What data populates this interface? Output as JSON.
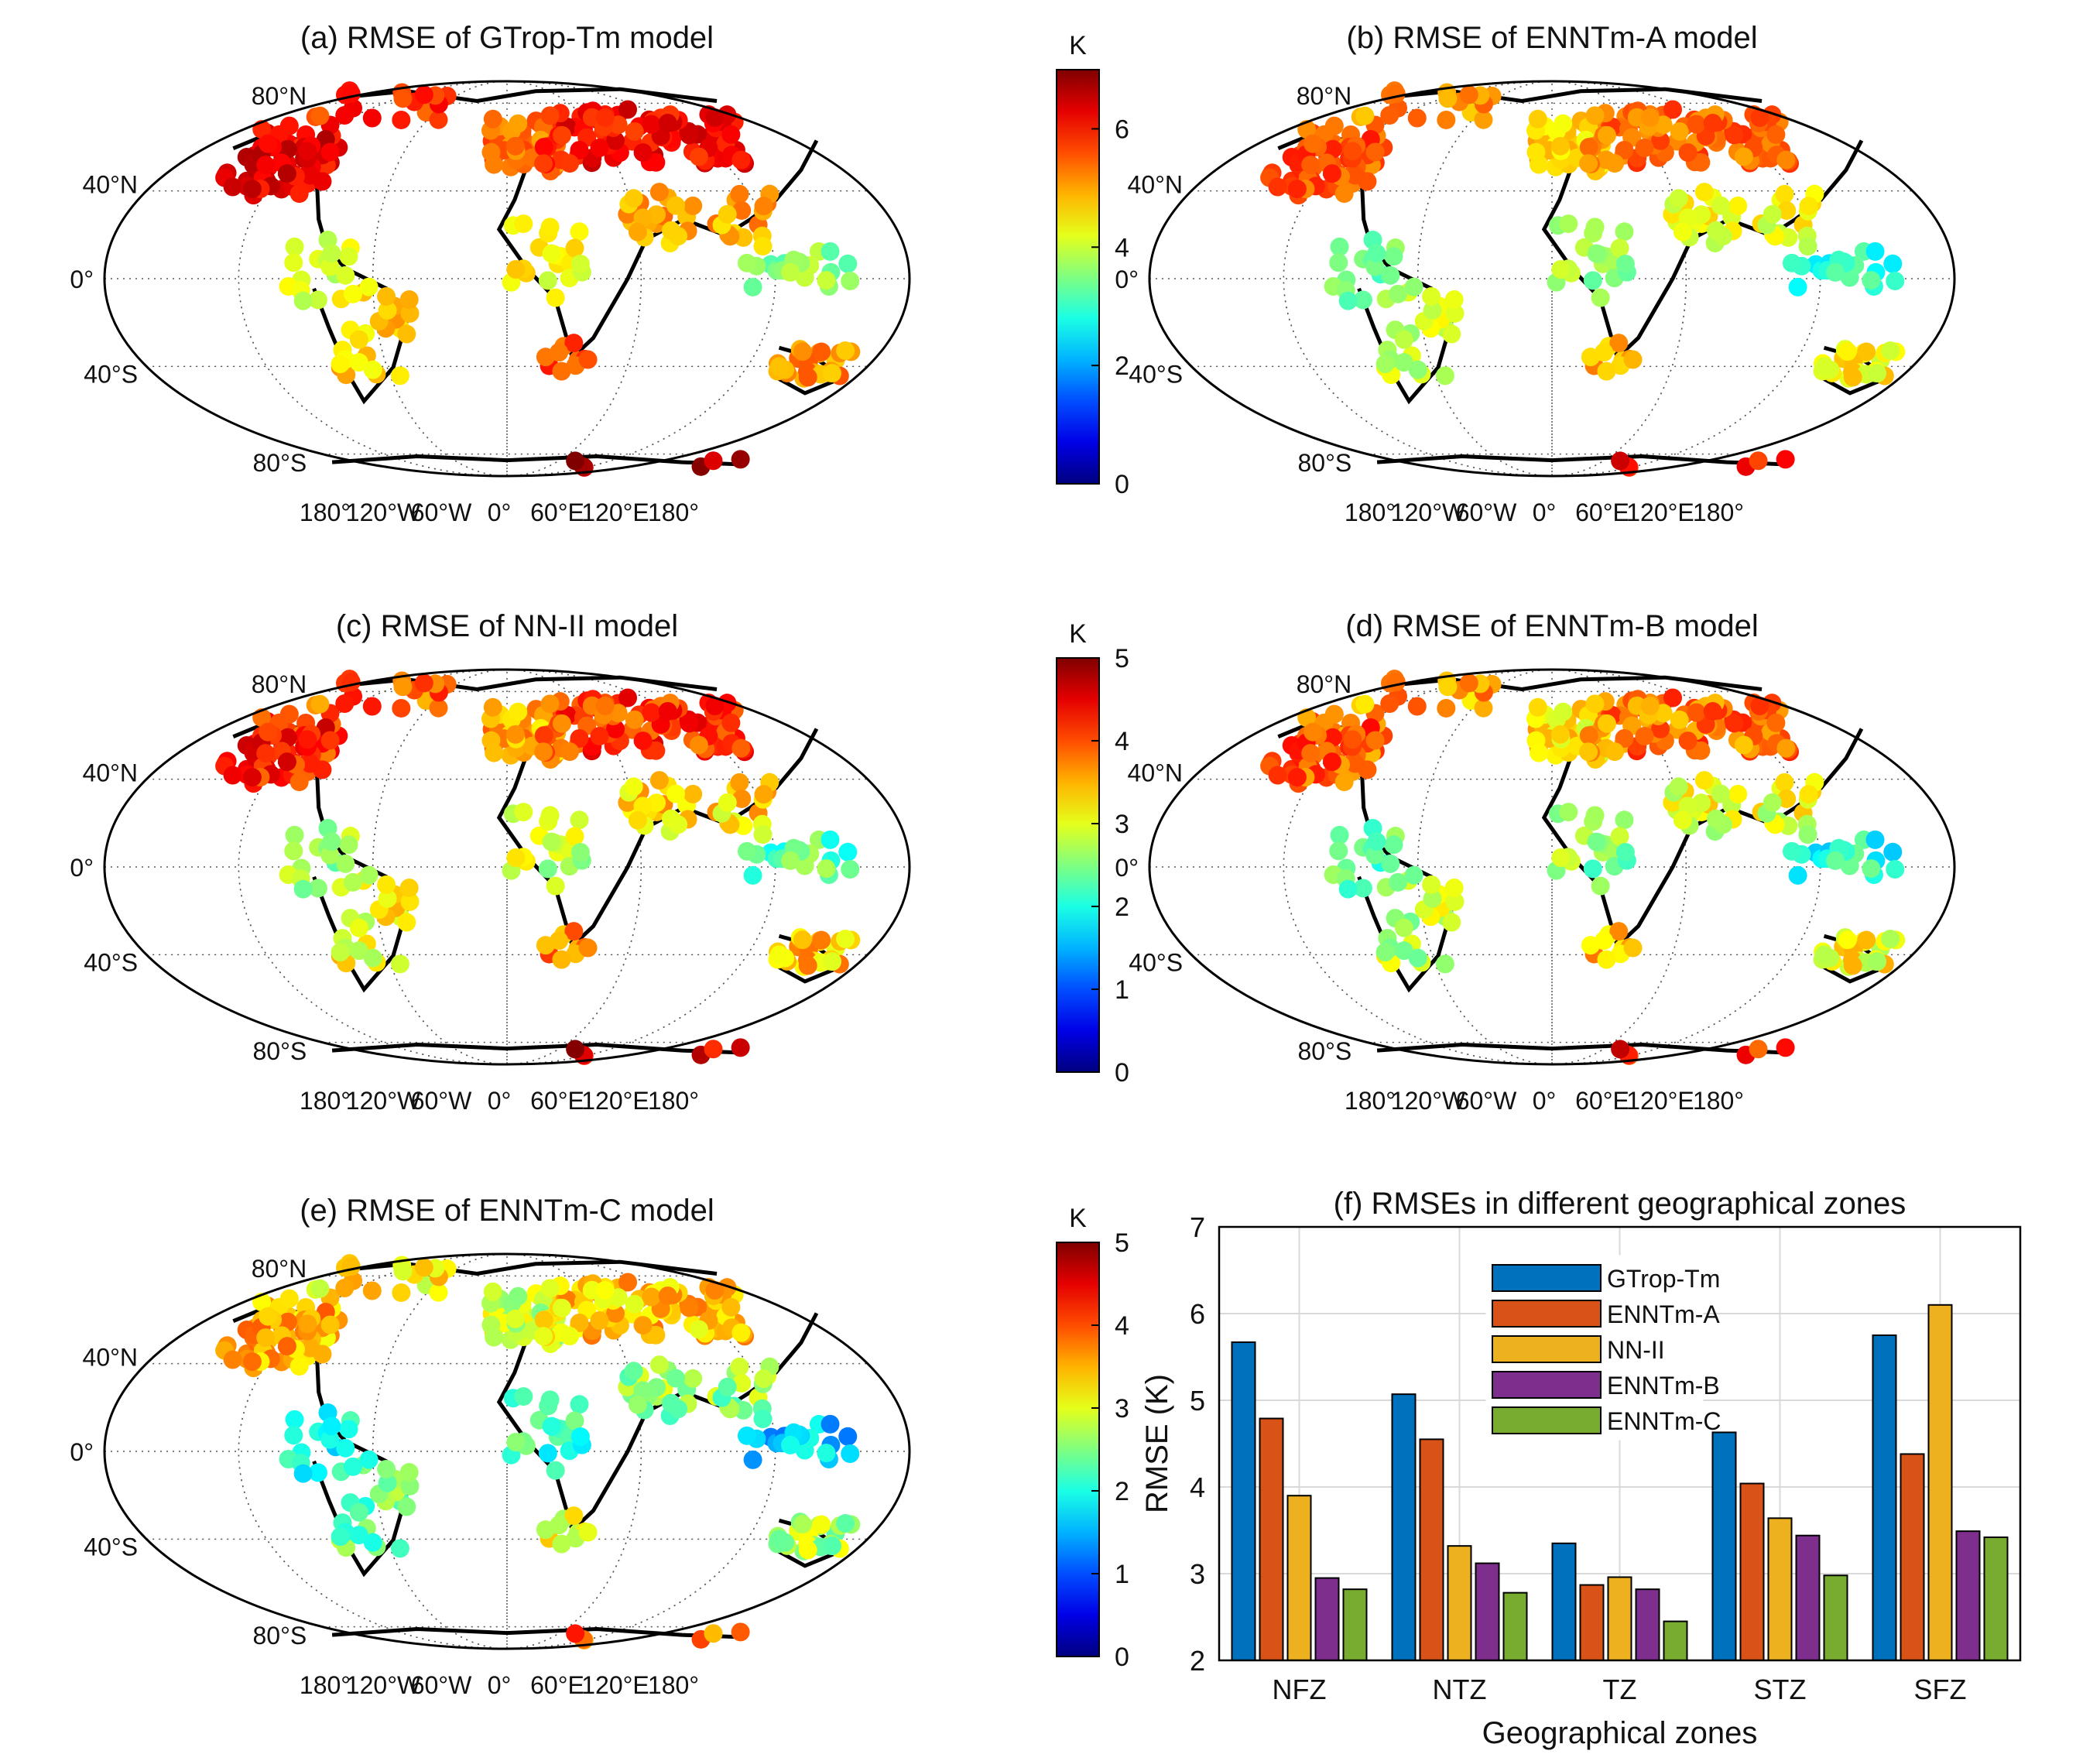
{
  "figure": {
    "unit_label": "K"
  },
  "map_axes": {
    "lat_ticks": [
      "80°N",
      "40°N",
      "0°",
      "40°S",
      "80°S"
    ],
    "lon_ticks": [
      "180°",
      "120°W",
      "60°W",
      "0°",
      "60°E",
      "120°E",
      "180°"
    ]
  },
  "panels": [
    {
      "id": "a",
      "title": "(a) RMSE of GTrop-Tm model",
      "cmax": 7,
      "cticks": [
        "0",
        "2",
        "4",
        "6"
      ],
      "level": 5.4
    },
    {
      "id": "b",
      "title": "(b) RMSE of ENNTm-A model",
      "cmax": 7,
      "cticks": [
        "0",
        "2",
        "4",
        "6"
      ],
      "level": 4.7
    },
    {
      "id": "c",
      "title": "(c) RMSE of NN-II model",
      "cmax": 5,
      "cticks": [
        "0",
        "1",
        "2",
        "3",
        "4",
        "5"
      ],
      "level": 3.6
    },
    {
      "id": "d",
      "title": "(d) RMSE of ENNTm-B model",
      "cmax": 5,
      "cticks": [
        "0",
        "1",
        "2",
        "3",
        "4",
        "5"
      ],
      "level": 3.3
    },
    {
      "id": "e",
      "title": "(e) RMSE of ENNTm-C model",
      "cmax": 5,
      "cticks": [
        "0",
        "1",
        "2",
        "3",
        "4",
        "5"
      ],
      "level": 2.9
    }
  ],
  "chart_data": {
    "type": "bar",
    "title": "(f) RMSEs in different geographical zones",
    "xlabel": "Geographical zones",
    "ylabel": "RMSE (K)",
    "ylim": [
      2,
      7
    ],
    "yticks": [
      "2",
      "3",
      "4",
      "5",
      "6",
      "7"
    ],
    "categories": [
      "NFZ",
      "NTZ",
      "TZ",
      "STZ",
      "SFZ"
    ],
    "series": [
      {
        "name": "GTrop-Tm",
        "color": "#0072BD",
        "values": [
          5.67,
          5.07,
          3.35,
          4.63,
          5.75
        ]
      },
      {
        "name": "ENNTm-A",
        "color": "#D95319",
        "values": [
          4.79,
          4.55,
          2.87,
          4.04,
          4.38
        ]
      },
      {
        "name": "NN-II",
        "color": "#EDB120",
        "values": [
          3.9,
          3.32,
          2.96,
          3.64,
          6.1
        ]
      },
      {
        "name": "ENNTm-B",
        "color": "#7E2F8E",
        "values": [
          2.95,
          3.12,
          2.82,
          3.44,
          3.49
        ]
      },
      {
        "name": "ENNTm-C",
        "color": "#77AC30",
        "values": [
          2.82,
          2.78,
          2.45,
          2.98,
          3.42
        ]
      }
    ],
    "legend": "top-center"
  }
}
